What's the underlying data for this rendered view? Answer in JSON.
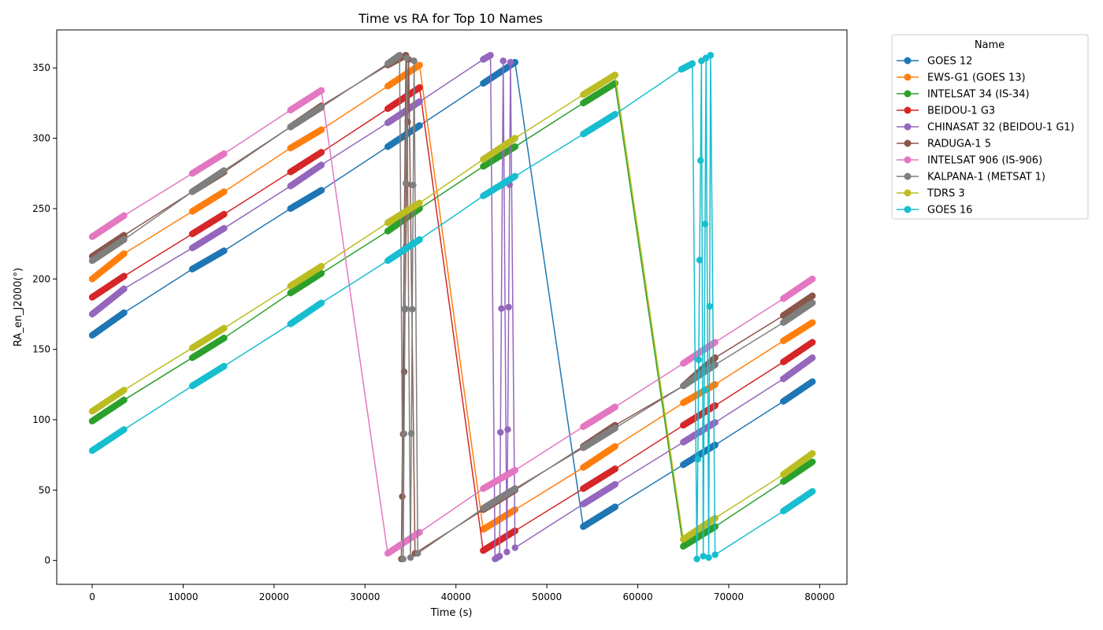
{
  "chart_data": {
    "type": "line",
    "title": "Time vs RA for Top 10 Names",
    "xlabel": "Time (s)",
    "ylabel": "RA_en_J2000(°)",
    "xlim": [
      -3900,
      83000
    ],
    "ylim": [
      -17,
      377
    ],
    "xticks": [
      0,
      10000,
      20000,
      30000,
      40000,
      50000,
      60000,
      70000,
      80000
    ],
    "yticks": [
      0,
      50,
      100,
      150,
      200,
      250,
      300,
      350
    ],
    "grid": false,
    "legend": {
      "title": "Name",
      "placement": "outside-right-top"
    },
    "series": [
      {
        "name": "GOES 12",
        "color": "#1f77b4",
        "points": [
          [
            0,
            160
          ],
          [
            3500,
            176
          ],
          [
            11000,
            207
          ],
          [
            14500,
            220
          ],
          [
            21800,
            250
          ],
          [
            25200,
            263
          ],
          [
            32500,
            294
          ],
          [
            36000,
            309
          ],
          [
            43000,
            339
          ],
          [
            46500,
            354
          ],
          [
            54000,
            24
          ],
          [
            57500,
            38
          ],
          [
            65000,
            68
          ],
          [
            68500,
            82
          ],
          [
            76000,
            113
          ],
          [
            79200,
            127
          ]
        ]
      },
      {
        "name": "EWS-G1 (GOES 13)",
        "color": "#ff7f0e",
        "points": [
          [
            0,
            200
          ],
          [
            3500,
            218
          ],
          [
            11000,
            248
          ],
          [
            14500,
            262
          ],
          [
            21800,
            293
          ],
          [
            25200,
            306
          ],
          [
            32500,
            337
          ],
          [
            36000,
            352
          ],
          [
            43000,
            22
          ],
          [
            46500,
            36
          ],
          [
            54000,
            66
          ],
          [
            57500,
            81
          ],
          [
            65000,
            112
          ],
          [
            68500,
            125
          ],
          [
            76000,
            156
          ],
          [
            79200,
            169
          ]
        ]
      },
      {
        "name": "INTELSAT 34 (IS-34)",
        "color": "#2ca02c",
        "points": [
          [
            0,
            99
          ],
          [
            3500,
            114
          ],
          [
            11000,
            144
          ],
          [
            14500,
            158
          ],
          [
            21800,
            190
          ],
          [
            25200,
            204
          ],
          [
            32500,
            234
          ],
          [
            36000,
            250
          ],
          [
            43000,
            280
          ],
          [
            46500,
            294
          ],
          [
            54000,
            325
          ],
          [
            57500,
            339
          ],
          [
            65000,
            10
          ],
          [
            68500,
            24
          ],
          [
            76000,
            56
          ],
          [
            79200,
            70
          ]
        ]
      },
      {
        "name": "BEIDOU-1 G3",
        "color": "#d62728",
        "points": [
          [
            0,
            187
          ],
          [
            3500,
            202
          ],
          [
            11000,
            232
          ],
          [
            14500,
            246
          ],
          [
            21800,
            276
          ],
          [
            25200,
            290
          ],
          [
            32500,
            321
          ],
          [
            36000,
            336
          ],
          [
            43000,
            7
          ],
          [
            46500,
            21
          ],
          [
            54000,
            51
          ],
          [
            57500,
            65
          ],
          [
            65000,
            96
          ],
          [
            68500,
            110
          ],
          [
            76000,
            141
          ],
          [
            79200,
            155
          ]
        ]
      },
      {
        "name": "CHINASAT 32 (BEIDOU-1 G1)",
        "color": "#9467bd",
        "points": [
          [
            0,
            175
          ],
          [
            3500,
            193
          ],
          [
            11000,
            222
          ],
          [
            14500,
            236
          ],
          [
            21800,
            266
          ],
          [
            25200,
            281
          ],
          [
            32500,
            311
          ],
          [
            36000,
            326
          ],
          [
            43000,
            356
          ],
          [
            43800,
            359
          ],
          [
            44300,
            1
          ],
          [
            44800,
            3
          ],
          [
            45200,
            355
          ],
          [
            45600,
            6
          ],
          [
            46000,
            354
          ],
          [
            46500,
            9
          ],
          [
            54000,
            40
          ],
          [
            57500,
            54
          ],
          [
            65000,
            84
          ],
          [
            68500,
            98
          ],
          [
            76000,
            129
          ],
          [
            79200,
            144
          ]
        ]
      },
      {
        "name": "RADUGA-1 5",
        "color": "#8c564b",
        "points": [
          [
            0,
            216
          ],
          [
            3500,
            231
          ],
          [
            11000,
            262
          ],
          [
            14500,
            276
          ],
          [
            21800,
            308
          ],
          [
            25200,
            323
          ],
          [
            32500,
            352
          ],
          [
            34500,
            359
          ],
          [
            34000,
            1
          ],
          [
            34800,
            356
          ],
          [
            35500,
            5
          ],
          [
            43000,
            36
          ],
          [
            46500,
            50
          ],
          [
            54000,
            81
          ],
          [
            57500,
            96
          ],
          [
            65000,
            124
          ],
          [
            68500,
            144
          ],
          [
            76000,
            174
          ],
          [
            79200,
            188
          ]
        ]
      },
      {
        "name": "INTELSAT 906 (IS-906)",
        "color": "#e377c2",
        "points": [
          [
            0,
            230
          ],
          [
            3500,
            245
          ],
          [
            11000,
            275
          ],
          [
            14500,
            289
          ],
          [
            21800,
            320
          ],
          [
            25200,
            334
          ],
          [
            32500,
            5
          ],
          [
            36000,
            20
          ],
          [
            43000,
            51
          ],
          [
            46500,
            64
          ],
          [
            54000,
            95
          ],
          [
            57500,
            109
          ],
          [
            65000,
            140
          ],
          [
            68500,
            155
          ],
          [
            76000,
            186
          ],
          [
            79200,
            200
          ]
        ]
      },
      {
        "name": "KALPANA-1 (METSAT 1)",
        "color": "#7f7f7f",
        "points": [
          [
            0,
            213
          ],
          [
            3500,
            228
          ],
          [
            11000,
            262
          ],
          [
            14500,
            277
          ],
          [
            21800,
            308
          ],
          [
            25200,
            322
          ],
          [
            32500,
            353
          ],
          [
            33800,
            359
          ],
          [
            34200,
            1
          ],
          [
            34600,
            357
          ],
          [
            35000,
            2
          ],
          [
            35400,
            355
          ],
          [
            35800,
            5
          ],
          [
            43000,
            37
          ],
          [
            46500,
            51
          ],
          [
            54000,
            80
          ],
          [
            57500,
            94
          ],
          [
            65000,
            124
          ],
          [
            68500,
            139
          ],
          [
            76000,
            169
          ],
          [
            79200,
            183
          ]
        ]
      },
      {
        "name": "TDRS 3",
        "color": "#bcbd22",
        "points": [
          [
            0,
            106
          ],
          [
            3500,
            121
          ],
          [
            11000,
            151
          ],
          [
            14500,
            165
          ],
          [
            21800,
            195
          ],
          [
            25200,
            209
          ],
          [
            32500,
            240
          ],
          [
            36000,
            254
          ],
          [
            43000,
            285
          ],
          [
            46500,
            300
          ],
          [
            54000,
            331
          ],
          [
            57500,
            345
          ],
          [
            65000,
            15
          ],
          [
            68500,
            30
          ],
          [
            76000,
            61
          ],
          [
            79200,
            76
          ]
        ]
      },
      {
        "name": "GOES 16",
        "color": "#17becf",
        "points": [
          [
            0,
            78
          ],
          [
            3500,
            93
          ],
          [
            11000,
            124
          ],
          [
            14500,
            138
          ],
          [
            21800,
            168
          ],
          [
            25200,
            183
          ],
          [
            32500,
            213
          ],
          [
            36000,
            228
          ],
          [
            43000,
            259
          ],
          [
            46500,
            273
          ],
          [
            54000,
            303
          ],
          [
            57500,
            317
          ],
          [
            64800,
            349
          ],
          [
            66000,
            353
          ],
          [
            66500,
            1
          ],
          [
            67000,
            355
          ],
          [
            67200,
            3
          ],
          [
            67500,
            357
          ],
          [
            67800,
            2
          ],
          [
            68000,
            359
          ],
          [
            68500,
            4
          ],
          [
            76000,
            35
          ],
          [
            79200,
            49
          ]
        ]
      }
    ]
  }
}
